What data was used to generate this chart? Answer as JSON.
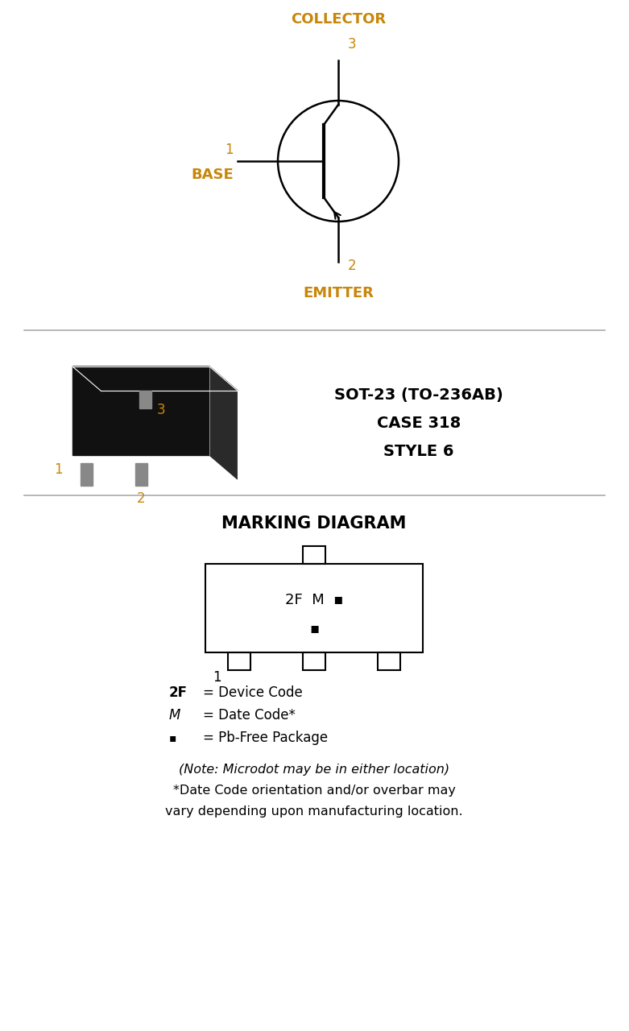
{
  "bg_color": "#ffffff",
  "text_color": "#000000",
  "label_color": "#c8860a",
  "section1": {
    "collector_label": "COLLECTOR",
    "collector_pin": "3",
    "base_label": "BASE",
    "base_pin": "1",
    "emitter_label": "EMITTER",
    "emitter_pin": "2"
  },
  "section2": {
    "package_line1": "SOT-23 (TO-236AB)",
    "package_line2": "CASE 318",
    "package_line3": "STYLE 6"
  },
  "section3": {
    "title": "MARKING DIAGRAM",
    "mark_line1": "2F  M ▪",
    "mark_line2": "▪",
    "legend_2F": "2F    = Device Code",
    "legend_M": "M      = Date Code*",
    "legend_dot": "▪       = Pb-Free Package",
    "note1": "(Note: Microdot may be in either location)",
    "note2": "*Date Code orientation and/or overbar may",
    "note3": "vary depending upon manufacturing location."
  },
  "divider_color": "#aaaaaa",
  "fig_width": 7.81,
  "fig_height": 12.8
}
